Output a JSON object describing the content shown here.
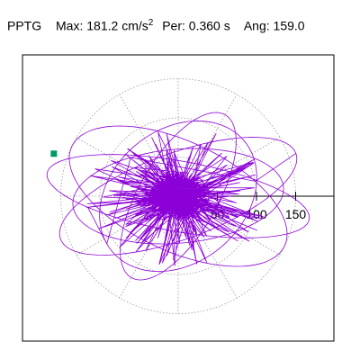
{
  "header": {
    "component": "PPTG",
    "max_label": "Max:",
    "max_value": "181.2",
    "max_unit": "cm/s",
    "max_unit_exp": "2",
    "per_label": "Per:",
    "per_value": "0.360",
    "per_unit": "s",
    "ang_label": "Ang:",
    "ang_value": "159.0"
  },
  "chart_data": {
    "type": "polar-orbit",
    "radial_ticks": [
      50,
      100,
      150
    ],
    "radial_tick_labels": [
      "50",
      "100",
      "150"
    ],
    "rings": [
      50,
      100,
      150
    ],
    "spokes_deg": [
      0,
      30,
      60,
      90,
      120,
      150,
      180,
      210,
      240,
      270,
      300,
      330
    ],
    "grid": true,
    "orbit_color": "#8b00d6",
    "marker_color": "#009966",
    "grid_color": "#999999",
    "marker_point": [
      -158.8,
      54.3
    ]
  }
}
